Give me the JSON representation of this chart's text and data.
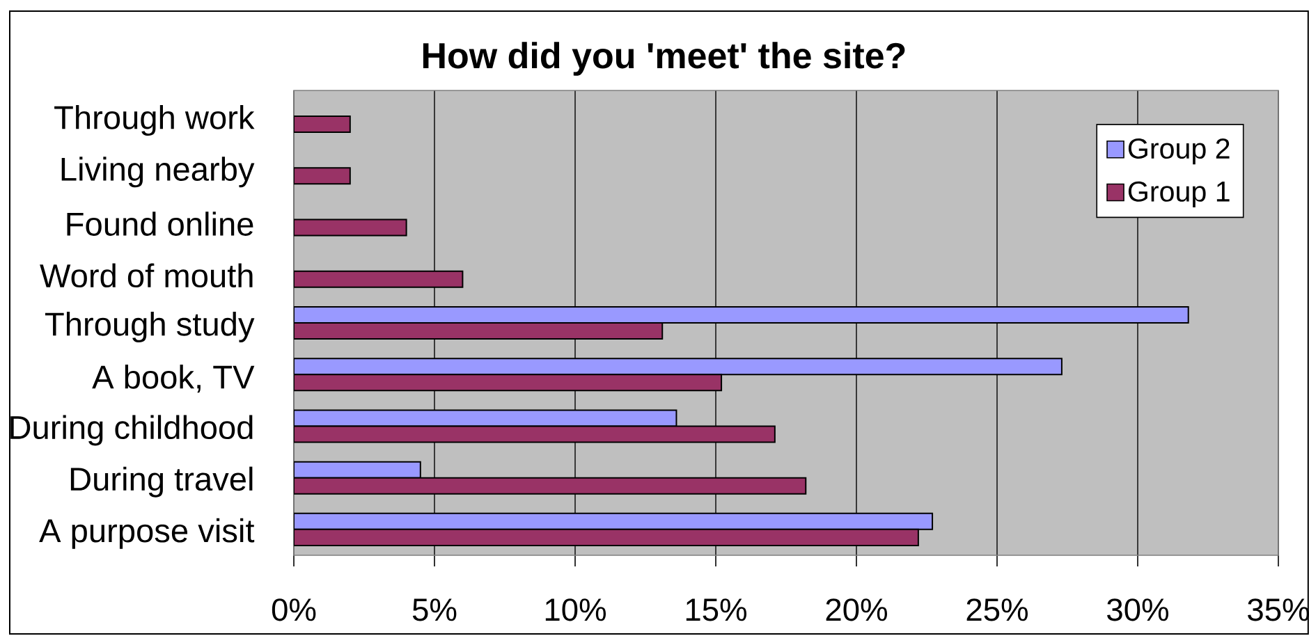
{
  "chart_data": {
    "type": "bar",
    "orientation": "horizontal",
    "title": "How did you 'meet' the site?",
    "categories": [
      "Through work",
      "Living nearby",
      "Found online",
      "Word of mouth",
      "Through study",
      "A book, TV",
      "During childhood",
      "During travel",
      "A purpose visit"
    ],
    "series": [
      {
        "name": "Group 2",
        "color": "#9999ff",
        "values": [
          null,
          null,
          null,
          null,
          31.8,
          27.3,
          13.6,
          4.5,
          22.7
        ]
      },
      {
        "name": "Group 1",
        "color": "#993366",
        "values": [
          2.0,
          2.0,
          4.0,
          6.0,
          13.1,
          15.2,
          17.1,
          18.2,
          22.2
        ]
      }
    ],
    "xlim": [
      0,
      35
    ],
    "xticks": [
      {
        "value": 0,
        "label": "0%"
      },
      {
        "value": 5,
        "label": "5%"
      },
      {
        "value": 10,
        "label": "10%"
      },
      {
        "value": 15,
        "label": "15%"
      },
      {
        "value": 20,
        "label": "20%"
      },
      {
        "value": 25,
        "label": "25%"
      },
      {
        "value": 30,
        "label": "30%"
      },
      {
        "value": 35,
        "label": "35%"
      }
    ],
    "grid": "x",
    "legend": "top right"
  }
}
